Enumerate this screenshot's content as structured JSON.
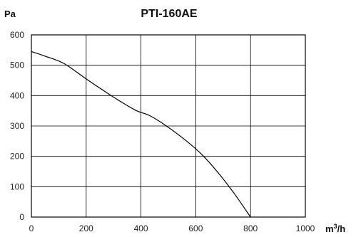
{
  "chart_data": {
    "type": "line",
    "title": "PTI-160AE",
    "ylabel": "Pa",
    "xlabel_base": "m",
    "xlabel_sup": "3",
    "xlabel_tail": "/h",
    "xlim": [
      0,
      1000
    ],
    "ylim": [
      0,
      600
    ],
    "x_ticks": [
      "0",
      "200",
      "400",
      "600",
      "800",
      "1000"
    ],
    "y_ticks": [
      "0",
      "100",
      "200",
      "300",
      "400",
      "500",
      "600"
    ],
    "grid": true,
    "series": [
      {
        "x": [
          0,
          50,
          120,
          200,
          300,
          380,
          430,
          480,
          550,
          620,
          680,
          740,
          800
        ],
        "y": [
          545,
          530,
          505,
          455,
          395,
          352,
          335,
          308,
          262,
          208,
          148,
          78,
          0
        ]
      }
    ],
    "colors": {
      "line": "#000000",
      "grid": "#000000"
    }
  }
}
